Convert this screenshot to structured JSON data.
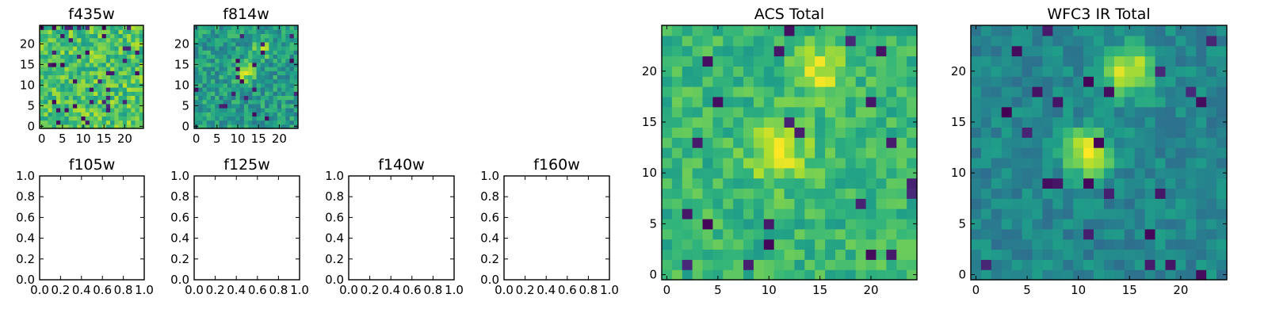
{
  "chart_data": [
    {
      "type": "heatmap",
      "title": "f435w",
      "empty": false,
      "grid_size": 25,
      "xlim": [
        -0.5,
        24.5
      ],
      "ylim": [
        -0.5,
        24.5
      ],
      "xticks": [
        0,
        5,
        10,
        15,
        20
      ],
      "yticks": [
        0,
        5,
        10,
        15,
        20
      ],
      "colormap": "viridis",
      "pattern": "noise",
      "values_note": "25x25 per-pixel values not individually readable"
    },
    {
      "type": "heatmap",
      "title": "f814w",
      "empty": false,
      "grid_size": 25,
      "xlim": [
        -0.5,
        24.5
      ],
      "ylim": [
        -0.5,
        24.5
      ],
      "xticks": [
        0,
        5,
        10,
        15,
        20
      ],
      "yticks": [
        0,
        5,
        10,
        15,
        20
      ],
      "colormap": "viridis",
      "pattern": "blob",
      "values_note": "25x25 per-pixel values not individually readable"
    },
    {
      "type": "heatmap",
      "title": "f105w",
      "empty": true,
      "xlim": [
        0,
        1
      ],
      "ylim": [
        0,
        1
      ],
      "xticks": [
        0.0,
        0.2,
        0.4,
        0.6,
        0.8,
        1.0
      ],
      "yticks": [
        0.0,
        0.2,
        0.4,
        0.6,
        0.8,
        1.0
      ]
    },
    {
      "type": "heatmap",
      "title": "f125w",
      "empty": true,
      "xlim": [
        0,
        1
      ],
      "ylim": [
        0,
        1
      ],
      "xticks": [
        0.0,
        0.2,
        0.4,
        0.6,
        0.8,
        1.0
      ],
      "yticks": [
        0.0,
        0.2,
        0.4,
        0.6,
        0.8,
        1.0
      ]
    },
    {
      "type": "heatmap",
      "title": "f140w",
      "empty": true,
      "xlim": [
        0,
        1
      ],
      "ylim": [
        0,
        1
      ],
      "xticks": [
        0.0,
        0.2,
        0.4,
        0.6,
        0.8,
        1.0
      ],
      "yticks": [
        0.0,
        0.2,
        0.4,
        0.6,
        0.8,
        1.0
      ]
    },
    {
      "type": "heatmap",
      "title": "f160w",
      "empty": true,
      "xlim": [
        0,
        1
      ],
      "ylim": [
        0,
        1
      ],
      "xticks": [
        0.0,
        0.2,
        0.4,
        0.6,
        0.8,
        1.0
      ],
      "yticks": [
        0.0,
        0.2,
        0.4,
        0.6,
        0.8,
        1.0
      ]
    },
    {
      "type": "heatmap",
      "title": "ACS Total",
      "empty": false,
      "grid_size": 25,
      "xlim": [
        -0.5,
        24.5
      ],
      "ylim": [
        -0.5,
        24.5
      ],
      "xticks": [
        0,
        5,
        10,
        15,
        20
      ],
      "yticks": [
        0,
        5,
        10,
        15,
        20
      ],
      "colormap": "viridis",
      "pattern": "blob",
      "values_note": "25x25 per-pixel values not individually readable"
    },
    {
      "type": "heatmap",
      "title": "WFC3 IR Total",
      "empty": false,
      "grid_size": 25,
      "xlim": [
        -0.5,
        24.5
      ],
      "ylim": [
        -0.5,
        24.5
      ],
      "xticks": [
        0,
        5,
        10,
        15,
        20
      ],
      "yticks": [
        0,
        5,
        10,
        15,
        20
      ],
      "colormap": "viridis",
      "pattern": "blob",
      "values_note": "25x25 per-pixel values not individually readable"
    }
  ]
}
